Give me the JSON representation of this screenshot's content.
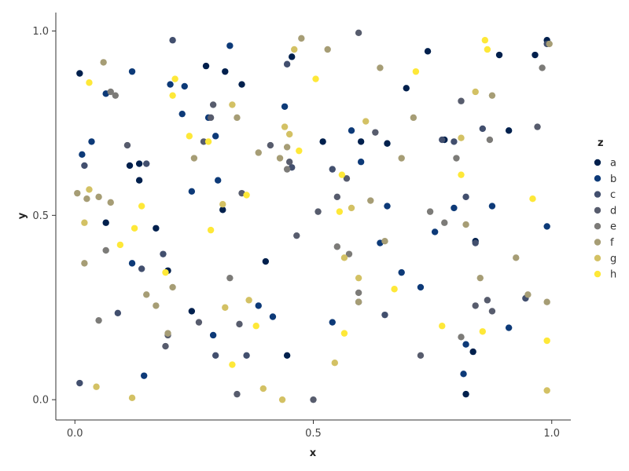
{
  "chart_data": {
    "type": "scatter",
    "xlabel": "x",
    "ylabel": "y",
    "xlim": [
      -0.04,
      1.04
    ],
    "ylim": [
      -0.055,
      1.05
    ],
    "x_ticks": [
      0.0,
      0.5,
      1.0
    ],
    "x_tick_labels": [
      "0.0",
      "0.5",
      "1.0"
    ],
    "y_ticks": [
      0.0,
      0.5,
      1.0
    ],
    "y_tick_labels": [
      "0.0",
      "0.5",
      "1.0"
    ],
    "grid": false,
    "legend": {
      "title": "z",
      "position": "right"
    },
    "series": [
      {
        "name": "a",
        "color": "#00204d",
        "points": [
          [
            0.01,
            0.885
          ],
          [
            0.065,
            0.48
          ],
          [
            0.115,
            0.635
          ],
          [
            0.135,
            0.64
          ],
          [
            0.135,
            0.595
          ],
          [
            0.17,
            0.465
          ],
          [
            0.195,
            0.35
          ],
          [
            0.245,
            0.24
          ],
          [
            0.275,
            0.905
          ],
          [
            0.31,
            0.515
          ],
          [
            0.315,
            0.89
          ],
          [
            0.35,
            0.855
          ],
          [
            0.4,
            0.375
          ],
          [
            0.445,
            0.12
          ],
          [
            0.455,
            0.93
          ],
          [
            0.52,
            0.7
          ],
          [
            0.6,
            0.7
          ],
          [
            0.655,
            0.695
          ],
          [
            0.695,
            0.845
          ],
          [
            0.74,
            0.945
          ],
          [
            0.775,
            0.705
          ],
          [
            0.82,
            0.015
          ],
          [
            0.835,
            0.13
          ],
          [
            0.84,
            0.43
          ],
          [
            0.89,
            0.935
          ],
          [
            0.91,
            0.73
          ],
          [
            0.965,
            0.935
          ],
          [
            0.99,
            0.975
          ]
        ]
      },
      {
        "name": "b",
        "color": "#0d3a78",
        "points": [
          [
            0.015,
            0.665
          ],
          [
            0.035,
            0.7
          ],
          [
            0.065,
            0.83
          ],
          [
            0.12,
            0.89
          ],
          [
            0.12,
            0.37
          ],
          [
            0.145,
            0.065
          ],
          [
            0.2,
            0.855
          ],
          [
            0.225,
            0.775
          ],
          [
            0.23,
            0.85
          ],
          [
            0.245,
            0.565
          ],
          [
            0.28,
            0.765
          ],
          [
            0.29,
            0.175
          ],
          [
            0.295,
            0.715
          ],
          [
            0.3,
            0.595
          ],
          [
            0.325,
            0.96
          ],
          [
            0.385,
            0.255
          ],
          [
            0.415,
            0.225
          ],
          [
            0.44,
            0.795
          ],
          [
            0.54,
            0.21
          ],
          [
            0.58,
            0.73
          ],
          [
            0.6,
            0.645
          ],
          [
            0.64,
            0.425
          ],
          [
            0.655,
            0.525
          ],
          [
            0.685,
            0.345
          ],
          [
            0.725,
            0.305
          ],
          [
            0.755,
            0.455
          ],
          [
            0.795,
            0.52
          ],
          [
            0.815,
            0.07
          ],
          [
            0.82,
            0.15
          ],
          [
            0.875,
            0.525
          ],
          [
            0.91,
            0.195
          ],
          [
            0.99,
            0.47
          ]
        ]
      },
      {
        "name": "c",
        "color": "#424f6e",
        "points": [
          [
            0.01,
            0.045
          ],
          [
            0.02,
            0.635
          ],
          [
            0.09,
            0.235
          ],
          [
            0.14,
            0.355
          ],
          [
            0.15,
            0.64
          ],
          [
            0.185,
            0.395
          ],
          [
            0.205,
            0.975
          ],
          [
            0.295,
            0.12
          ],
          [
            0.36,
            0.12
          ],
          [
            0.445,
            0.91
          ],
          [
            0.455,
            0.63
          ],
          [
            0.54,
            0.625
          ],
          [
            0.595,
            0.265
          ],
          [
            0.65,
            0.23
          ],
          [
            0.77,
            0.705
          ],
          [
            0.795,
            0.7
          ],
          [
            0.82,
            0.55
          ],
          [
            0.84,
            0.425
          ],
          [
            0.855,
            0.735
          ],
          [
            0.945,
            0.275
          ],
          [
            0.99,
            0.965
          ]
        ]
      },
      {
        "name": "d",
        "color": "#575c6d",
        "points": [
          [
            0.11,
            0.69
          ],
          [
            0.19,
            0.145
          ],
          [
            0.195,
            0.175
          ],
          [
            0.26,
            0.21
          ],
          [
            0.27,
            0.7
          ],
          [
            0.285,
            0.765
          ],
          [
            0.29,
            0.8
          ],
          [
            0.34,
            0.015
          ],
          [
            0.345,
            0.205
          ],
          [
            0.35,
            0.56
          ],
          [
            0.41,
            0.69
          ],
          [
            0.45,
            0.645
          ],
          [
            0.465,
            0.445
          ],
          [
            0.5,
            0.0
          ],
          [
            0.51,
            0.51
          ],
          [
            0.55,
            0.55
          ],
          [
            0.57,
            0.6
          ],
          [
            0.595,
            0.995
          ],
          [
            0.63,
            0.725
          ],
          [
            0.725,
            0.12
          ],
          [
            0.81,
            0.81
          ],
          [
            0.84,
            0.255
          ],
          [
            0.865,
            0.27
          ],
          [
            0.875,
            0.24
          ],
          [
            0.97,
            0.74
          ]
        ]
      },
      {
        "name": "e",
        "color": "#7c7b78",
        "points": [
          [
            0.075,
            0.835
          ],
          [
            0.085,
            0.825
          ],
          [
            0.065,
            0.405
          ],
          [
            0.05,
            0.215
          ],
          [
            0.325,
            0.33
          ],
          [
            0.445,
            0.625
          ],
          [
            0.55,
            0.415
          ],
          [
            0.575,
            0.395
          ],
          [
            0.595,
            0.29
          ],
          [
            0.745,
            0.51
          ],
          [
            0.775,
            0.48
          ],
          [
            0.8,
            0.655
          ],
          [
            0.81,
            0.17
          ],
          [
            0.87,
            0.705
          ],
          [
            0.98,
            0.9
          ]
        ]
      },
      {
        "name": "f",
        "color": "#a69d75",
        "points": [
          [
            0.005,
            0.56
          ],
          [
            0.025,
            0.545
          ],
          [
            0.02,
            0.37
          ],
          [
            0.05,
            0.55
          ],
          [
            0.06,
            0.915
          ],
          [
            0.075,
            0.535
          ],
          [
            0.15,
            0.285
          ],
          [
            0.17,
            0.255
          ],
          [
            0.195,
            0.18
          ],
          [
            0.205,
            0.305
          ],
          [
            0.25,
            0.655
          ],
          [
            0.34,
            0.765
          ],
          [
            0.385,
            0.67
          ],
          [
            0.43,
            0.655
          ],
          [
            0.445,
            0.685
          ],
          [
            0.475,
            0.98
          ],
          [
            0.53,
            0.95
          ],
          [
            0.595,
            0.265
          ],
          [
            0.62,
            0.54
          ],
          [
            0.64,
            0.9
          ],
          [
            0.65,
            0.43
          ],
          [
            0.685,
            0.655
          ],
          [
            0.71,
            0.765
          ],
          [
            0.82,
            0.475
          ],
          [
            0.85,
            0.33
          ],
          [
            0.875,
            0.825
          ],
          [
            0.925,
            0.385
          ],
          [
            0.95,
            0.285
          ],
          [
            0.99,
            0.265
          ],
          [
            0.995,
            0.965
          ]
        ]
      },
      {
        "name": "g",
        "color": "#d3c164",
        "points": [
          [
            0.045,
            0.035
          ],
          [
            0.02,
            0.48
          ],
          [
            0.03,
            0.57
          ],
          [
            0.12,
            0.005
          ],
          [
            0.31,
            0.53
          ],
          [
            0.315,
            0.25
          ],
          [
            0.33,
            0.8
          ],
          [
            0.365,
            0.27
          ],
          [
            0.395,
            0.03
          ],
          [
            0.435,
            0.0
          ],
          [
            0.44,
            0.74
          ],
          [
            0.45,
            0.72
          ],
          [
            0.46,
            0.95
          ],
          [
            0.545,
            0.1
          ],
          [
            0.565,
            0.385
          ],
          [
            0.58,
            0.52
          ],
          [
            0.595,
            0.33
          ],
          [
            0.61,
            0.755
          ],
          [
            0.81,
            0.71
          ],
          [
            0.84,
            0.835
          ],
          [
            0.99,
            0.025
          ]
        ]
      },
      {
        "name": "h",
        "color": "#fee838",
        "points": [
          [
            0.03,
            0.86
          ],
          [
            0.095,
            0.42
          ],
          [
            0.125,
            0.465
          ],
          [
            0.14,
            0.525
          ],
          [
            0.19,
            0.345
          ],
          [
            0.205,
            0.825
          ],
          [
            0.21,
            0.87
          ],
          [
            0.24,
            0.715
          ],
          [
            0.28,
            0.7
          ],
          [
            0.285,
            0.46
          ],
          [
            0.33,
            0.095
          ],
          [
            0.36,
            0.555
          ],
          [
            0.38,
            0.2
          ],
          [
            0.47,
            0.675
          ],
          [
            0.505,
            0.87
          ],
          [
            0.555,
            0.51
          ],
          [
            0.56,
            0.61
          ],
          [
            0.565,
            0.18
          ],
          [
            0.67,
            0.3
          ],
          [
            0.715,
            0.89
          ],
          [
            0.77,
            0.2
          ],
          [
            0.81,
            0.61
          ],
          [
            0.855,
            0.185
          ],
          [
            0.86,
            0.975
          ],
          [
            0.865,
            0.95
          ],
          [
            0.96,
            0.545
          ],
          [
            0.99,
            0.16
          ]
        ]
      }
    ]
  }
}
